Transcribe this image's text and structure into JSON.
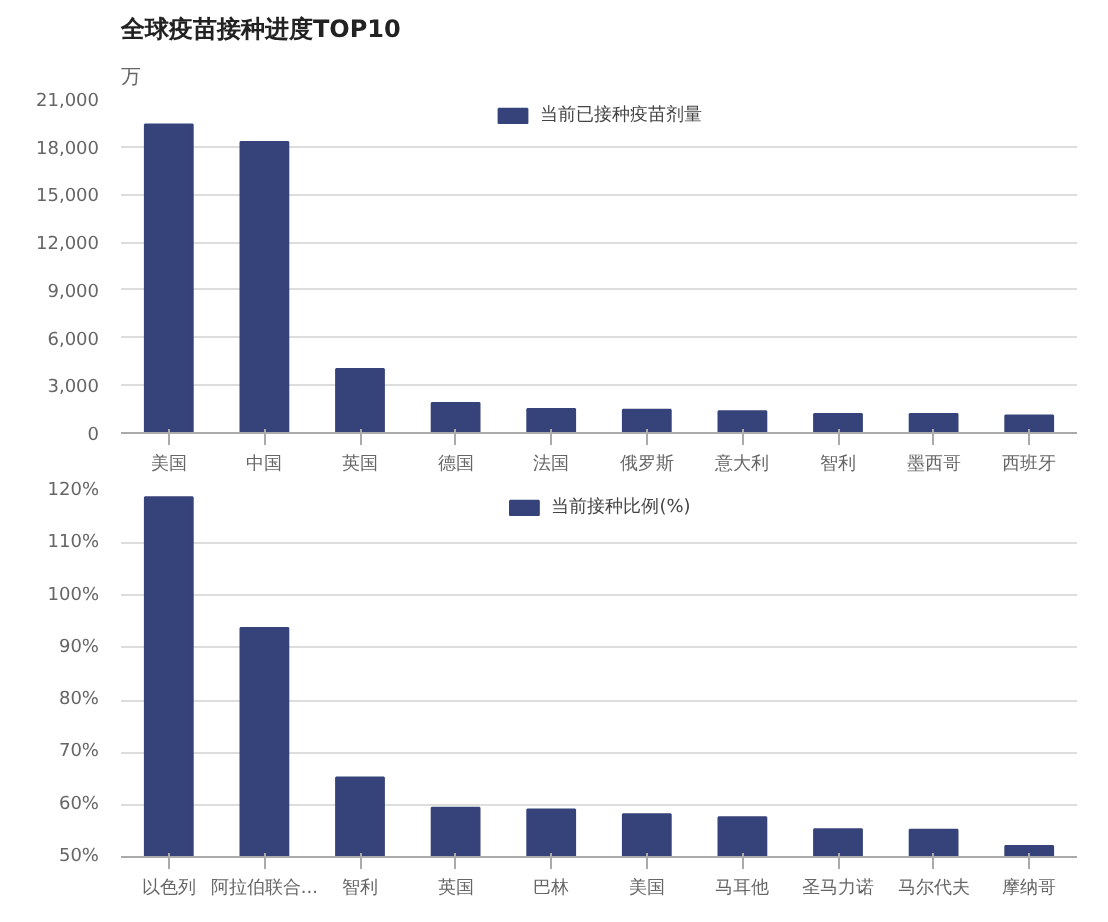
{
  "chart_data": [
    {
      "type": "bar",
      "title": "全球疫苗接种进度TOP10",
      "ylabel": "万",
      "categories": [
        "美国",
        "中国",
        "英国",
        "德国",
        "法国",
        "俄罗斯",
        "意大利",
        "智利",
        "墨西哥",
        "西班牙"
      ],
      "series": [
        {
          "name": "当前已接种疫苗剂量",
          "color": "#36437a",
          "values": [
            19400,
            18300,
            4020,
            1880,
            1510,
            1460,
            1370,
            1190,
            1190,
            1100
          ]
        }
      ],
      "ylim": [
        0,
        21000
      ],
      "yticks": [
        {
          "value": 0,
          "label": "0"
        },
        {
          "value": 3000,
          "label": "3,000"
        },
        {
          "value": 6000,
          "label": "6,000"
        },
        {
          "value": 9000,
          "label": "9,000"
        },
        {
          "value": 12000,
          "label": "12,000"
        },
        {
          "value": 15000,
          "label": "15,000"
        },
        {
          "value": 18000,
          "label": "18,000"
        },
        {
          "value": 21000,
          "label": "21,000"
        }
      ],
      "grid": "y",
      "legend": "top"
    },
    {
      "type": "bar",
      "categories": [
        "以色列",
        "阿拉伯联合...",
        "智利",
        "英国",
        "巴林",
        "美国",
        "马耳他",
        "圣马力诺",
        "马尔代夫",
        "摩纳哥"
      ],
      "series": [
        {
          "name": "当前接种比例(%)",
          "color": "#36437a",
          "values": [
            118.8,
            93.8,
            65.2,
            59.4,
            59.1,
            58.2,
            57.6,
            55.3,
            55.2,
            52.1
          ]
        }
      ],
      "ylim": [
        50,
        120
      ],
      "yticks": [
        {
          "value": 50,
          "label": "50%"
        },
        {
          "value": 60,
          "label": "60%"
        },
        {
          "value": 70,
          "label": "70%"
        },
        {
          "value": 80,
          "label": "80%"
        },
        {
          "value": 90,
          "label": "90%"
        },
        {
          "value": 100,
          "label": "100%"
        },
        {
          "value": 110,
          "label": "110%"
        },
        {
          "value": 120,
          "label": "120%"
        }
      ],
      "grid": "y",
      "legend": "top"
    }
  ]
}
